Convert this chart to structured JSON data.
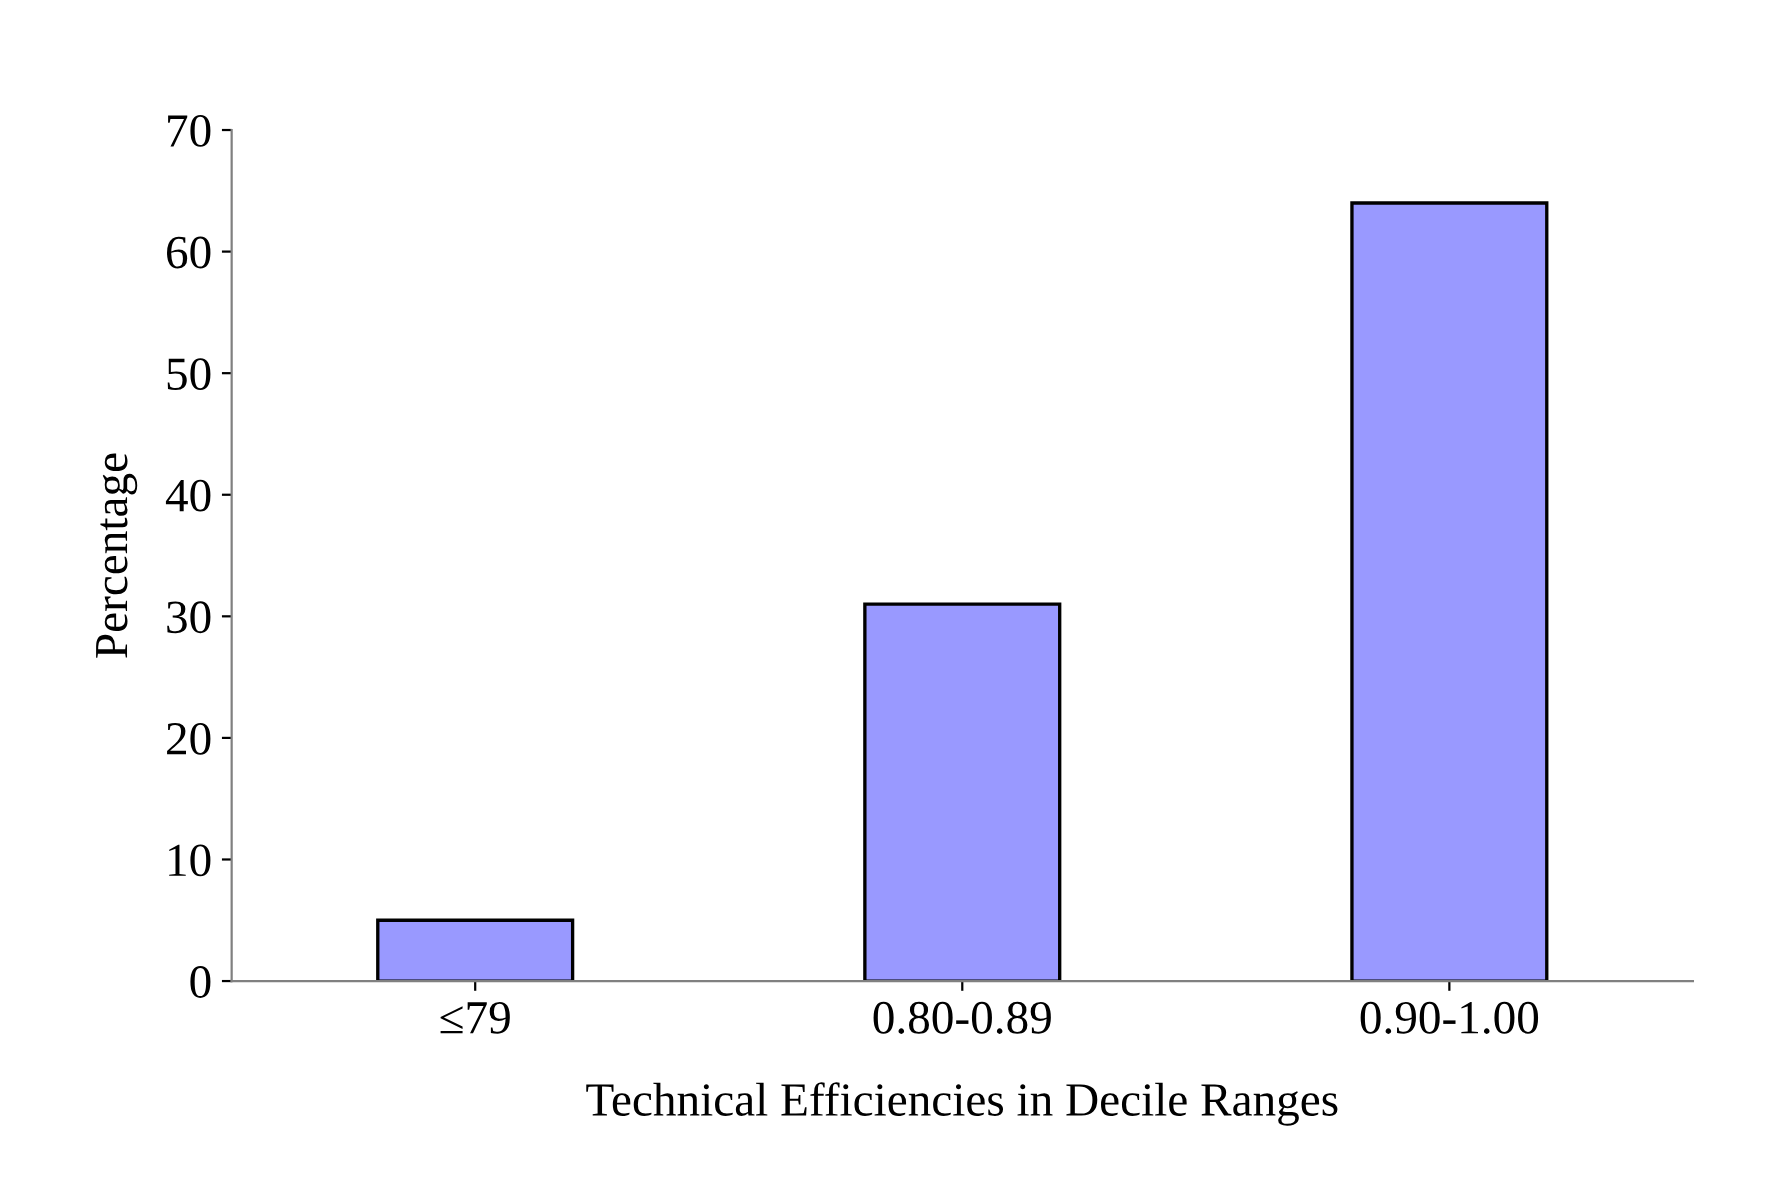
{
  "chart_data": {
    "type": "bar",
    "xlabel": "Technical Efficiencies in Decile Ranges",
    "ylabel": "Percentage",
    "categories": [
      "≤79",
      "0.80-0.89",
      "0.90-1.00"
    ],
    "values": [
      5,
      31,
      64
    ],
    "color": "#9999ff",
    "ylim": [
      0,
      70
    ],
    "yticks": [
      0,
      10,
      20,
      30,
      40,
      50,
      60,
      70
    ],
    "grid": false
  }
}
